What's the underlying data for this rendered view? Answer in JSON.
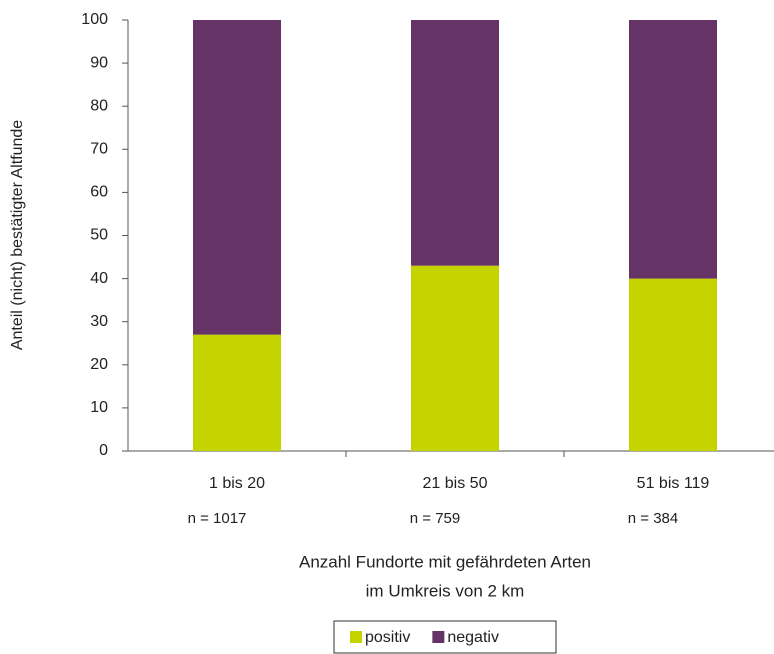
{
  "chart_data": {
    "type": "stacked_bar",
    "y_label": "Anteil (nicht) bestätigter Altfunde",
    "x_label": [
      "Anzahl Fundorte mit gefährdeten Arten",
      "im Umkreis von 2 km"
    ],
    "categories": [
      "1 bis 20",
      "21 bis 50",
      "51 bis 119"
    ],
    "annotations": [
      "n = 1017",
      "n = 759",
      "n = 384"
    ],
    "series": [
      {
        "name": "positiv",
        "color": "#c5d400",
        "values": [
          27,
          43,
          40
        ]
      },
      {
        "name": "negativ",
        "color": "#663366",
        "values": [
          73,
          57,
          60
        ]
      }
    ],
    "ylim": [
      0,
      100
    ],
    "yticks": [
      0,
      10,
      20,
      30,
      40,
      50,
      60,
      70,
      80,
      90,
      100
    ],
    "legend": "bottom"
  }
}
